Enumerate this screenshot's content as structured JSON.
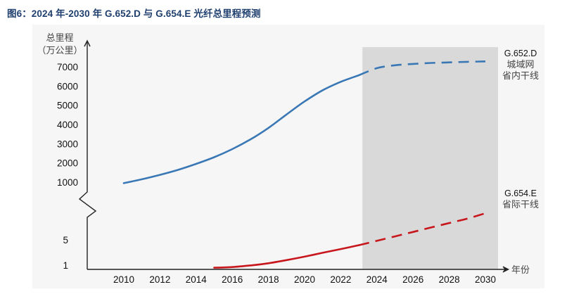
{
  "title": "图6：2024 年-2030 年 G.652.D 与 G.654.E 光纤总里程预测",
  "chart_data": {
    "type": "line",
    "title": "图6：2024 年-2030 年 G.652.D 与 G.654.E 光纤总里程预测",
    "xlabel": "年份",
    "ylabel": [
      "总里程",
      "（万公里）"
    ],
    "x_ticks": [
      "2010",
      "2012",
      "2014",
      "2016",
      "2018",
      "2020",
      "2022",
      "2024",
      "2026",
      "2028",
      "2030"
    ],
    "y_ticks_upper": [
      "7000",
      "6000",
      "5000",
      "4000",
      "3000",
      "2000",
      "1000"
    ],
    "y_ticks_lower": [
      "5",
      "1"
    ],
    "axis_break": true,
    "xlim": [
      2008,
      2031.5
    ],
    "ylim_upper": [
      600,
      7700
    ],
    "ylim_lower": [
      0,
      11
    ],
    "forecast_region": [
      2023.2,
      2030.7
    ],
    "grid": false,
    "series": [
      {
        "name": "G.652.D",
        "labels": [
          "G.652.D",
          "城域网",
          "省内干线"
        ],
        "color": "#3a78b5",
        "scale": "upper",
        "actual": {
          "x": [
            2010,
            2011,
            2012,
            2013,
            2014,
            2015,
            2016,
            2017,
            2018,
            2019,
            2020,
            2021,
            2022,
            2023
          ],
          "y": [
            950,
            1150,
            1380,
            1640,
            1950,
            2300,
            2720,
            3220,
            3820,
            4520,
            5200,
            5780,
            6220,
            6560
          ]
        },
        "forecast": {
          "x": [
            2023,
            2024,
            2025,
            2026,
            2027,
            2028,
            2029,
            2030
          ],
          "y": [
            6560,
            6930,
            7080,
            7150,
            7200,
            7230,
            7260,
            7280
          ]
        }
      },
      {
        "name": "G.654.E",
        "labels": [
          "G.654.E",
          "省际干线"
        ],
        "color": "#c8161d",
        "scale": "lower",
        "actual": {
          "x": [
            2015,
            2016,
            2017,
            2018,
            2019,
            2020,
            2021,
            2022,
            2023
          ],
          "y": [
            0.6,
            0.7,
            0.95,
            1.3,
            1.8,
            2.35,
            2.95,
            3.55,
            4.15
          ]
        },
        "forecast": {
          "x": [
            2023,
            2024,
            2025,
            2026,
            2027,
            2028,
            2029,
            2030
          ],
          "y": [
            4.15,
            4.85,
            5.55,
            6.25,
            6.95,
            7.65,
            8.35,
            9.2
          ]
        }
      }
    ]
  }
}
